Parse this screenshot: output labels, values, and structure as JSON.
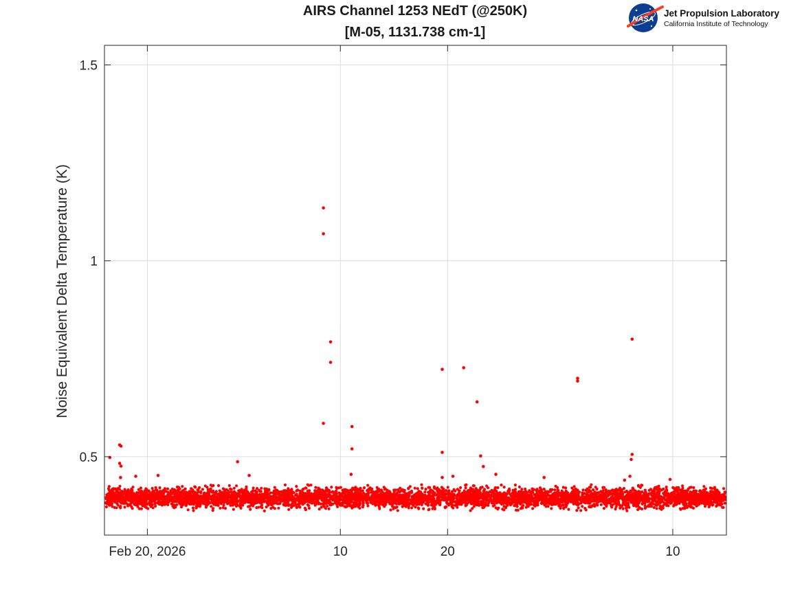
{
  "chart_data": {
    "type": "scatter",
    "title": [
      "AIRS Channel 1253 NEdT (@250K)",
      "[M-05, 1131.738 cm-1]"
    ],
    "xlabel": "",
    "ylabel": "Noise Equivalent Delta Temperature (K)",
    "x_axis": {
      "kind": "date",
      "range": [
        "2026-02-16",
        "2026-04-15"
      ],
      "ticks": [
        {
          "date": "2026-02-20",
          "label": "Feb 20, 2026"
        },
        {
          "date": "2026-03-10",
          "label": "10"
        },
        {
          "date": "2026-03-20",
          "label": "20"
        },
        {
          "date": "2026-04-10",
          "label": "10"
        }
      ]
    },
    "y_axis": {
      "range": [
        0.3,
        1.55
      ],
      "ticks": [
        {
          "value": 0.5,
          "label": "0.5"
        },
        {
          "value": 1.0,
          "label": "1"
        },
        {
          "value": 1.5,
          "label": "1.5"
        }
      ]
    },
    "grid": true,
    "marker_color": "#ff0000",
    "baseline_band": {
      "x_range": [
        "2026-02-16",
        "2026-04-15"
      ],
      "y_center": 0.395,
      "y_spread": 0.028
    },
    "series": [
      {
        "points": [
          {
            "x": "2026-02-16T12:00",
            "y": 0.498
          },
          {
            "x": "2026-02-17T10:00",
            "y": 0.53
          },
          {
            "x": "2026-02-17T13:00",
            "y": 0.527
          },
          {
            "x": "2026-02-17T10:00",
            "y": 0.483
          },
          {
            "x": "2026-02-17T13:00",
            "y": 0.476
          },
          {
            "x": "2026-02-17T12:00",
            "y": 0.447
          },
          {
            "x": "2026-02-18T22:00",
            "y": 0.45
          },
          {
            "x": "2026-02-21T00:00",
            "y": 0.452
          },
          {
            "x": "2026-02-28T10:00",
            "y": 0.487
          },
          {
            "x": "2026-03-01T12:00",
            "y": 0.452
          },
          {
            "x": "2026-03-08T10:00",
            "y": 1.135
          },
          {
            "x": "2026-03-08T10:00",
            "y": 1.069
          },
          {
            "x": "2026-03-08T10:00",
            "y": 0.585
          },
          {
            "x": "2026-03-09T02:00",
            "y": 0.793
          },
          {
            "x": "2026-03-09T02:00",
            "y": 0.741
          },
          {
            "x": "2026-03-11T00:00",
            "y": 0.455
          },
          {
            "x": "2026-03-11T02:00",
            "y": 0.577
          },
          {
            "x": "2026-03-11T02:00",
            "y": 0.52
          },
          {
            "x": "2026-03-19T12:00",
            "y": 0.723
          },
          {
            "x": "2026-03-19T12:00",
            "y": 0.511
          },
          {
            "x": "2026-03-19T12:00",
            "y": 0.447
          },
          {
            "x": "2026-03-20T12:00",
            "y": 0.45
          },
          {
            "x": "2026-03-21T12:00",
            "y": 0.727
          },
          {
            "x": "2026-03-22T18:00",
            "y": 0.64
          },
          {
            "x": "2026-03-23T02:00",
            "y": 0.502
          },
          {
            "x": "2026-03-23T08:00",
            "y": 0.475
          },
          {
            "x": "2026-03-24T12:00",
            "y": 0.455
          },
          {
            "x": "2026-03-29T00:00",
            "y": 0.447
          },
          {
            "x": "2026-04-01T03:00",
            "y": 0.7
          },
          {
            "x": "2026-04-01T03:00",
            "y": 0.693
          },
          {
            "x": "2026-04-05T12:00",
            "y": 0.44
          },
          {
            "x": "2026-04-06T05:00",
            "y": 0.8
          },
          {
            "x": "2026-04-06T05:00",
            "y": 0.506
          },
          {
            "x": "2026-04-06T03:00",
            "y": 0.493
          },
          {
            "x": "2026-04-06T00:00",
            "y": 0.45
          },
          {
            "x": "2026-04-09T18:00",
            "y": 0.442
          }
        ]
      }
    ]
  },
  "logo": {
    "agency": "NASA",
    "name": "Jet Propulsion Laboratory",
    "subtitle": "California Institute of Technology",
    "colors": {
      "blue": "#0b3d91",
      "red": "#fc3d21",
      "white": "#ffffff"
    }
  }
}
